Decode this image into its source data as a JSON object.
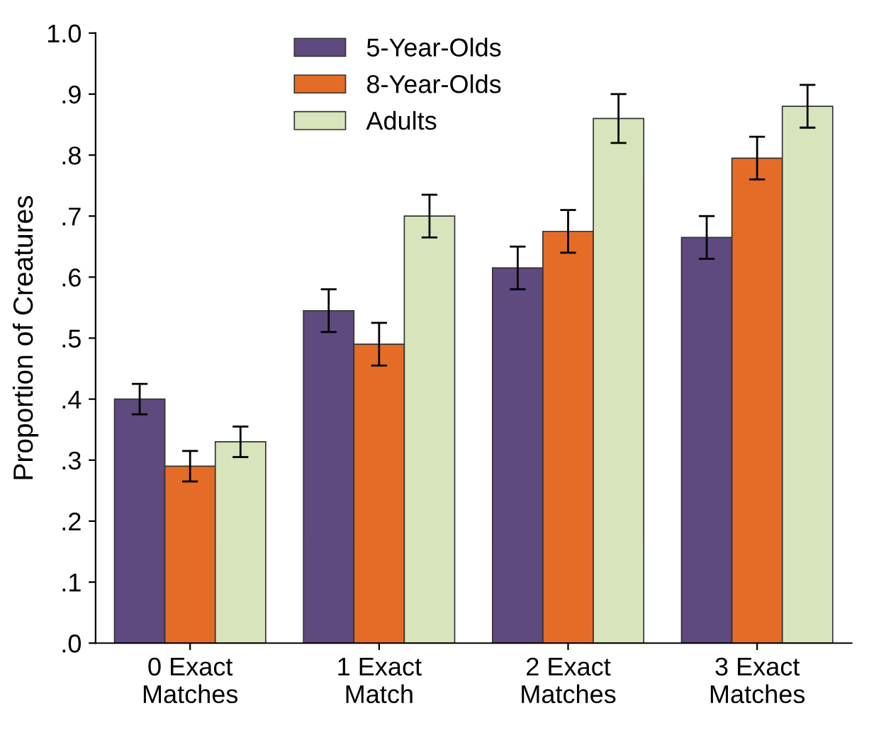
{
  "chart_data": {
    "type": "bar",
    "ylabel": "Proportion of Creatures",
    "categories": [
      "0 Exact\nMatches",
      "1 Exact\nMatch",
      "2 Exact\nMatches",
      "3 Exact\nMatches"
    ],
    "series": [
      {
        "name": "5-Year-Olds",
        "color": "#5e4a7e",
        "values": [
          0.4,
          0.545,
          0.615,
          0.665
        ],
        "errors": [
          0.025,
          0.035,
          0.035,
          0.035
        ]
      },
      {
        "name": "8-Year-Olds",
        "color": "#e46c26",
        "values": [
          0.29,
          0.49,
          0.675,
          0.795
        ],
        "errors": [
          0.025,
          0.035,
          0.035,
          0.035
        ]
      },
      {
        "name": "Adults",
        "color": "#d8e4bc",
        "values": [
          0.33,
          0.7,
          0.86,
          0.88
        ],
        "errors": [
          0.025,
          0.035,
          0.04,
          0.035
        ]
      }
    ],
    "ylim": [
      0,
      1.0
    ],
    "yticks": [
      {
        "value": 0,
        "label": ".0"
      },
      {
        "value": 0.1,
        "label": ".1"
      },
      {
        "value": 0.2,
        "label": ".2"
      },
      {
        "value": 0.3,
        "label": ".3"
      },
      {
        "value": 0.4,
        "label": ".4"
      },
      {
        "value": 0.5,
        "label": ".5"
      },
      {
        "value": 0.6,
        "label": ".6"
      },
      {
        "value": 0.7,
        "label": ".7"
      },
      {
        "value": 0.8,
        "label": ".8"
      },
      {
        "value": 0.9,
        "label": ".9"
      },
      {
        "value": 1.0,
        "label": "1.0"
      }
    ],
    "grid": false,
    "legend": "top"
  }
}
